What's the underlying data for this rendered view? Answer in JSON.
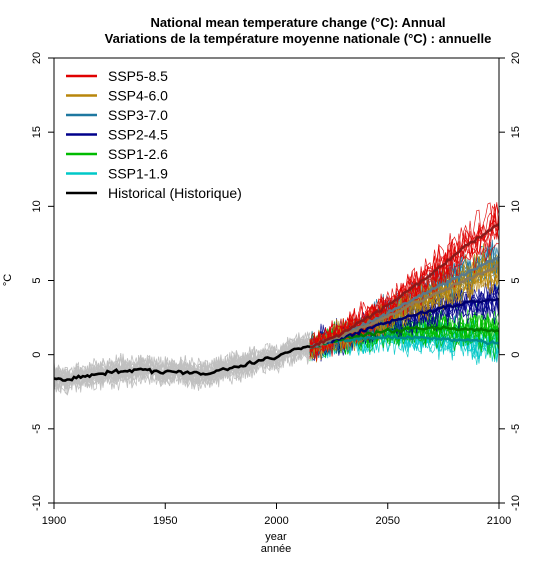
{
  "chart_data": {
    "type": "line",
    "title": "National mean temperature change (°C): Annual",
    "subtitle": "Variations de la température moyenne nationale (°C) : annuelle",
    "xlabel": "year",
    "xlabel_fr": "année",
    "ylabel": "°C",
    "xlim": [
      1900,
      2100
    ],
    "ylim": [
      -10,
      20
    ],
    "x_ticks": [
      "1900",
      "1950",
      "2000",
      "2050",
      "2100"
    ],
    "y_ticks": [
      "-10",
      "-5",
      "0",
      "5",
      "10",
      "15",
      "20"
    ],
    "legend_position": "top-left",
    "series": [
      {
        "name": "SSP5-8.5",
        "color": "#e00000",
        "x": [
          2015,
          2030,
          2050,
          2070,
          2085,
          2100
        ],
        "values": [
          0.5,
          1.5,
          3.3,
          5.5,
          7.3,
          8.8
        ]
      },
      {
        "name": "SSP4-6.0",
        "color": "#b8860b",
        "x": [
          2015,
          2030,
          2050,
          2070,
          2085,
          2100
        ],
        "values": [
          0.5,
          1.3,
          2.6,
          4.0,
          5.0,
          6.0
        ]
      },
      {
        "name": "SSP3-7.0",
        "color": "#1e78a0",
        "x": [
          2015,
          2030,
          2050,
          2070,
          2085,
          2100
        ],
        "values": [
          0.5,
          1.3,
          2.8,
          4.4,
          5.5,
          6.6
        ]
      },
      {
        "name": "SSP2-4.5",
        "color": "#00008b",
        "x": [
          2015,
          2030,
          2050,
          2070,
          2085,
          2100
        ],
        "values": [
          0.5,
          1.2,
          2.2,
          3.0,
          3.5,
          3.8
        ]
      },
      {
        "name": "SSP1-2.6",
        "color": "#00bb00",
        "x": [
          2015,
          2030,
          2050,
          2070,
          2085,
          2100
        ],
        "values": [
          0.5,
          1.1,
          1.6,
          1.8,
          1.7,
          1.6
        ]
      },
      {
        "name": "SSP1-1.9",
        "color": "#00c8c8",
        "x": [
          2015,
          2030,
          2050,
          2070,
          2085,
          2100
        ],
        "values": [
          0.5,
          1.0,
          1.2,
          1.1,
          1.0,
          0.8
        ]
      },
      {
        "name": "Historical (Historique)",
        "color": "#000000",
        "x": [
          1900,
          1905,
          1910,
          1915,
          1920,
          1925,
          1930,
          1935,
          1940,
          1945,
          1950,
          1955,
          1960,
          1965,
          1970,
          1975,
          1980,
          1985,
          1990,
          1995,
          2000,
          2005,
          2010,
          2015
        ],
        "values": [
          -1.6,
          -1.7,
          -1.5,
          -1.4,
          -1.3,
          -1.2,
          -1.1,
          -1.1,
          -1.0,
          -1.1,
          -1.2,
          -1.1,
          -1.2,
          -1.3,
          -1.3,
          -1.0,
          -0.9,
          -0.7,
          -0.5,
          -0.2,
          -0.2,
          0.2,
          0.4,
          0.5
        ]
      }
    ],
    "historical_ensemble_range": {
      "x": [
        1900,
        2015
      ],
      "min": -4,
      "max": 1.5,
      "color": "#c0c0c0"
    }
  }
}
